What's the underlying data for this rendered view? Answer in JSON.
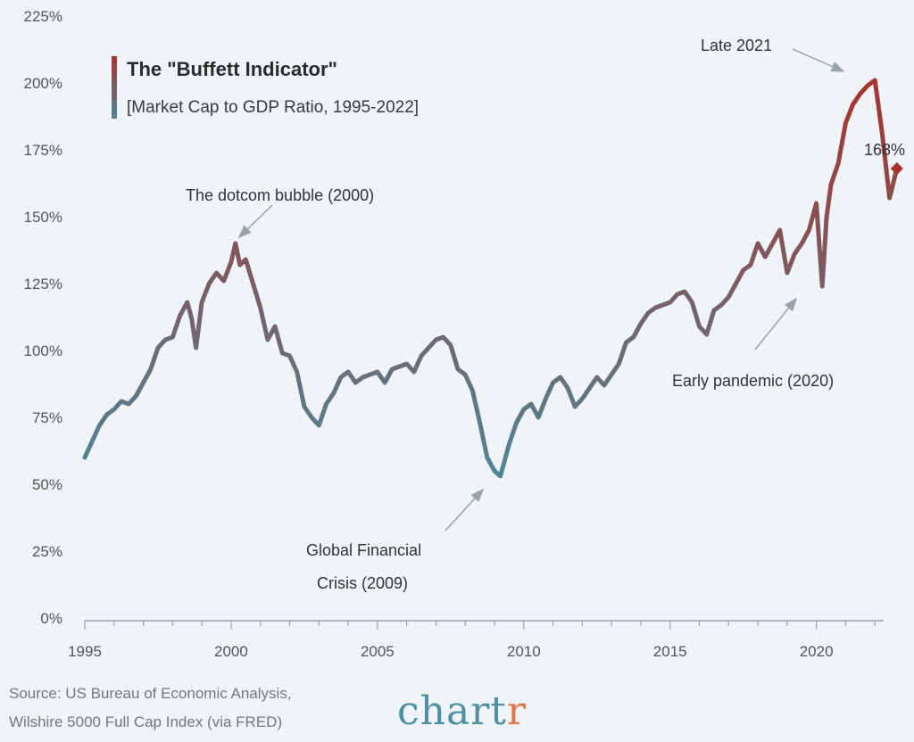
{
  "chart_data": {
    "type": "line",
    "title": "The \"Buffett Indicator\"",
    "subtitle": "[Market Cap to GDP Ratio, 1995-2022]",
    "xlabel": "",
    "ylabel": "",
    "xlim": [
      1995,
      2023
    ],
    "ylim": [
      0,
      225
    ],
    "x_ticks": [
      1995,
      2000,
      2005,
      2010,
      2015,
      2020
    ],
    "x_tick_labels": [
      "1995",
      "2000",
      "2005",
      "2010",
      "2015",
      "2020"
    ],
    "y_ticks": [
      0,
      25,
      50,
      75,
      100,
      125,
      150,
      175,
      200,
      225
    ],
    "y_tick_labels": [
      "0%",
      "25%",
      "50%",
      "75%",
      "100%",
      "125%",
      "150%",
      "175%",
      "200%",
      "225%"
    ],
    "grid": false,
    "legend_position": "top-left",
    "color_low": "#4f8799",
    "color_high": "#a8332d",
    "series": [
      {
        "name": "Market Cap to GDP Ratio",
        "x": [
          1995.0,
          1995.25,
          1995.5,
          1995.75,
          1996.0,
          1996.25,
          1996.5,
          1996.75,
          1997.0,
          1997.25,
          1997.5,
          1997.75,
          1998.0,
          1998.25,
          1998.5,
          1998.65,
          1998.8,
          1999.0,
          1999.25,
          1999.5,
          1999.75,
          2000.0,
          2000.15,
          2000.3,
          2000.5,
          2000.75,
          2001.0,
          2001.25,
          2001.5,
          2001.75,
          2002.0,
          2002.25,
          2002.5,
          2002.75,
          2003.0,
          2003.25,
          2003.5,
          2003.75,
          2004.0,
          2004.25,
          2004.5,
          2004.75,
          2005.0,
          2005.25,
          2005.5,
          2005.75,
          2006.0,
          2006.25,
          2006.5,
          2006.75,
          2007.0,
          2007.25,
          2007.5,
          2007.75,
          2008.0,
          2008.25,
          2008.5,
          2008.75,
          2009.0,
          2009.2,
          2009.5,
          2009.75,
          2010.0,
          2010.25,
          2010.5,
          2010.75,
          2011.0,
          2011.25,
          2011.5,
          2011.75,
          2012.0,
          2012.25,
          2012.5,
          2012.75,
          2013.0,
          2013.25,
          2013.5,
          2013.75,
          2014.0,
          2014.25,
          2014.5,
          2014.75,
          2015.0,
          2015.25,
          2015.5,
          2015.75,
          2016.0,
          2016.25,
          2016.5,
          2016.75,
          2017.0,
          2017.25,
          2017.5,
          2017.75,
          2018.0,
          2018.25,
          2018.5,
          2018.75,
          2019.0,
          2019.25,
          2019.5,
          2019.75,
          2020.0,
          2020.2,
          2020.35,
          2020.5,
          2020.75,
          2021.0,
          2021.25,
          2021.5,
          2021.75,
          2022.0,
          2022.25,
          2022.5,
          2022.75
        ],
        "values": [
          60,
          66,
          72,
          76,
          78,
          81,
          80,
          83,
          88,
          93,
          101,
          104,
          105,
          113,
          118,
          112,
          101,
          118,
          125,
          129,
          126,
          133,
          140,
          132,
          134,
          125,
          116,
          104,
          109,
          99,
          98,
          92,
          79,
          75,
          72,
          80,
          84,
          90,
          92,
          88,
          90,
          91,
          92,
          88,
          93,
          94,
          95,
          92,
          98,
          101,
          104,
          105,
          102,
          93,
          91,
          85,
          73,
          60,
          55,
          53,
          65,
          73,
          78,
          80,
          75,
          82,
          88,
          90,
          86,
          79,
          82,
          86,
          90,
          87,
          91,
          95,
          103,
          105,
          110,
          114,
          116,
          117,
          118,
          121,
          122,
          118,
          109,
          106,
          115,
          117,
          120,
          125,
          130,
          132,
          140,
          135,
          140,
          145,
          129,
          136,
          140,
          145,
          155,
          124,
          150,
          162,
          170,
          185,
          192,
          196,
          199,
          201,
          181,
          157,
          168
        ]
      }
    ],
    "end_value_label": "168%",
    "annotations": [
      {
        "lines": [
          "The dotcom bubble (2000)"
        ]
      },
      {
        "lines": [
          "Global Financial",
          "Crisis (2009)"
        ]
      },
      {
        "lines": [
          "Early pandemic (2020)"
        ]
      },
      {
        "lines": [
          "Late 2021"
        ]
      }
    ]
  },
  "footer": {
    "source_line1": "Source: US Bureau of Economic Analysis,",
    "source_line2": "Wilshire 5000 Full Cap Index (via FRED)",
    "brand_main": "chart",
    "brand_accent": "r"
  }
}
